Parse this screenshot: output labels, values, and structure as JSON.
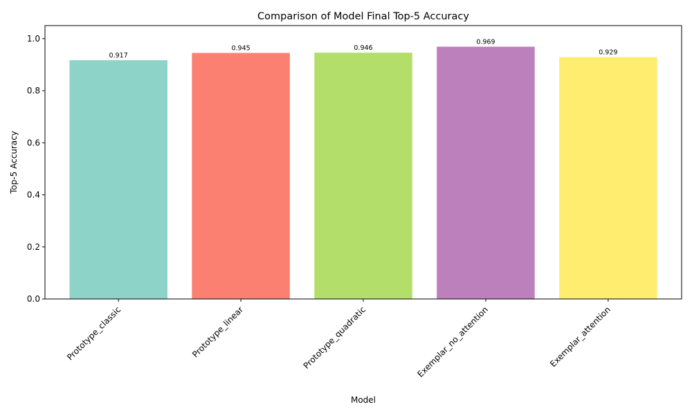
{
  "chart_data": {
    "type": "bar",
    "title": "Comparison of Model Final Top-5 Accuracy",
    "xlabel": "Model",
    "ylabel": "Top-5 Accuracy",
    "categories": [
      "Prototype_classic",
      "Prototype_linear",
      "Prototype_quadratic",
      "Exemplar_no_attention",
      "Exemplar_attention"
    ],
    "values": [
      0.917,
      0.945,
      0.946,
      0.969,
      0.929
    ],
    "data_labels": [
      "0.917",
      "0.945",
      "0.946",
      "0.969",
      "0.929"
    ],
    "colors": [
      "#8dd3c7",
      "#fb8072",
      "#b3de69",
      "#bc80bd",
      "#ffed6f"
    ],
    "ylim": [
      0,
      1.05
    ],
    "yticks": [
      0.0,
      0.2,
      0.4,
      0.6,
      0.8,
      1.0
    ],
    "ytick_labels": [
      "0.0",
      "0.2",
      "0.4",
      "0.6",
      "0.8",
      "1.0"
    ],
    "grid": false,
    "legend": "none"
  }
}
